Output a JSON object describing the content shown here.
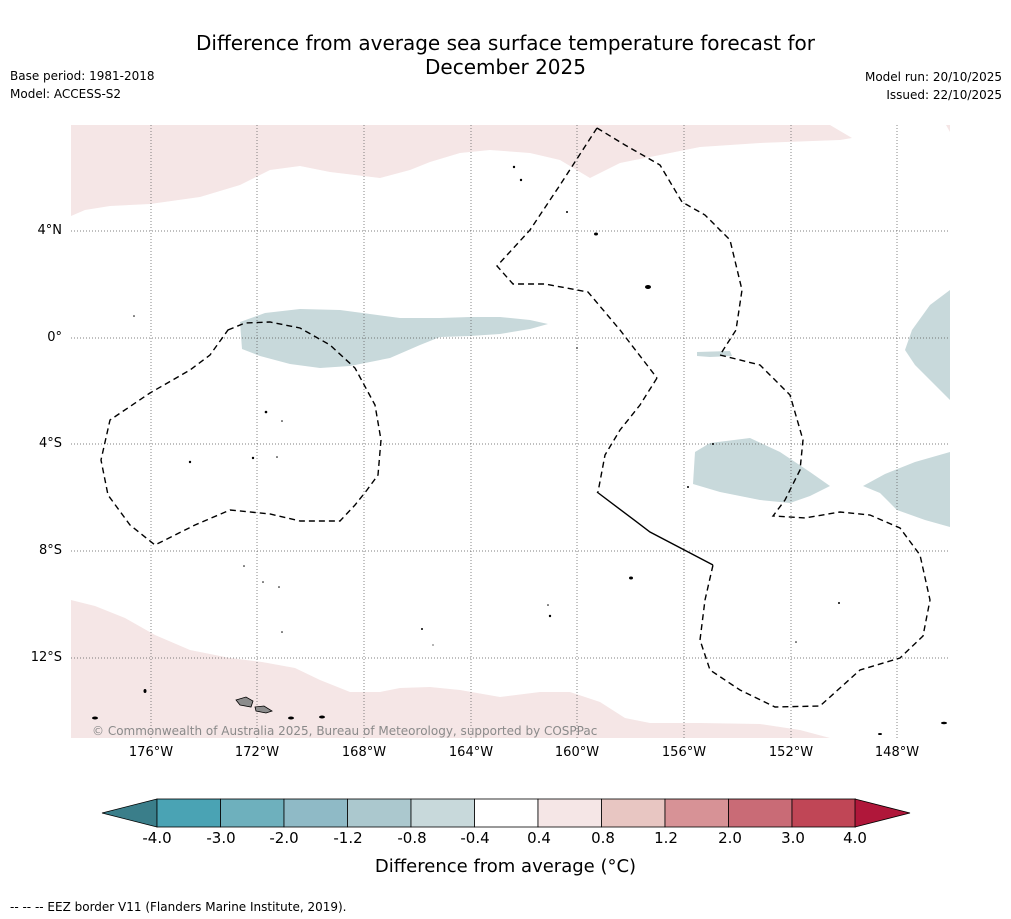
{
  "header": {
    "title_line1": "Difference from average sea surface temperature forecast for",
    "title_line2": "December 2025",
    "base_period": "Base period: 1981-2018",
    "model": "Model: ACCESS-S2",
    "model_run": "Model run: 20/10/2025",
    "issued": "Issued: 22/10/2025"
  },
  "map": {
    "lat_labels": [
      "4°N",
      "0°",
      "4°S",
      "8°S",
      "12°S"
    ],
    "lon_labels": [
      "176°W",
      "172°W",
      "168°W",
      "164°W",
      "160°W",
      "156°W",
      "152°W",
      "148°W"
    ],
    "copyright": "© Commonwealth of Australia 2025, Bureau of Meteorology, supported by COSPPac",
    "colors": {
      "warm_anomaly": "#f5e6e6",
      "cool_anomaly": "#c8d9db",
      "land": "#8c8c8c"
    }
  },
  "colorbar": {
    "ticks": [
      "-4.0",
      "-3.0",
      "-2.0",
      "-1.2",
      "-0.8",
      "-0.4",
      "0.4",
      "0.8",
      "1.2",
      "2.0",
      "3.0",
      "4.0"
    ],
    "colors": [
      "#3a7e8a",
      "#4aa3b4",
      "#6eb0bd",
      "#8fbac6",
      "#abc8ce",
      "#c8d9db",
      "#ffffff",
      "#f5e6e6",
      "#e8c6c2",
      "#d79296",
      "#c96b76",
      "#c04656",
      "#b0173a"
    ],
    "label": "Difference from average (°C)"
  },
  "footer": {
    "eez_note": "--  --  -- EEZ border V11 (Flanders Marine Institute, 2019)."
  }
}
